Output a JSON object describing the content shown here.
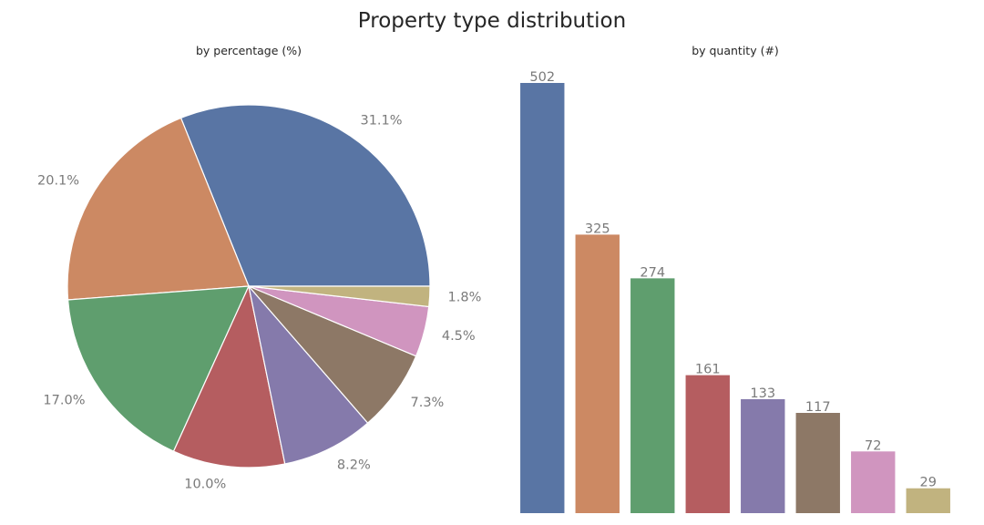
{
  "chart_data": {
    "title": "Property type distribution",
    "colors": [
      "#5975a4",
      "#cc8963",
      "#5f9e6e",
      "#b55d60",
      "#857aab",
      "#8d7866",
      "#d095bf",
      "#c1b37f"
    ],
    "charts": [
      {
        "type": "pie",
        "subtitle": "by percentage (%)",
        "values": [
          31.1,
          20.1,
          17.0,
          10.0,
          8.2,
          7.3,
          4.5,
          1.8
        ],
        "labels": [
          "31.1%",
          "20.1%",
          "17.0%",
          "10.0%",
          "8.2%",
          "7.3%",
          "4.5%",
          "1.8%"
        ],
        "start_angle_deg": 0,
        "direction": "counterclockwise"
      },
      {
        "type": "bar",
        "subtitle": "by quantity (#)",
        "values": [
          502,
          325,
          274,
          161,
          133,
          117,
          72,
          29
        ],
        "value_labels": [
          "502",
          "325",
          "274",
          "161",
          "133",
          "117",
          "72",
          "29"
        ],
        "ylim": [
          0,
          502
        ],
        "grid": false,
        "axes_visible": false
      }
    ]
  }
}
